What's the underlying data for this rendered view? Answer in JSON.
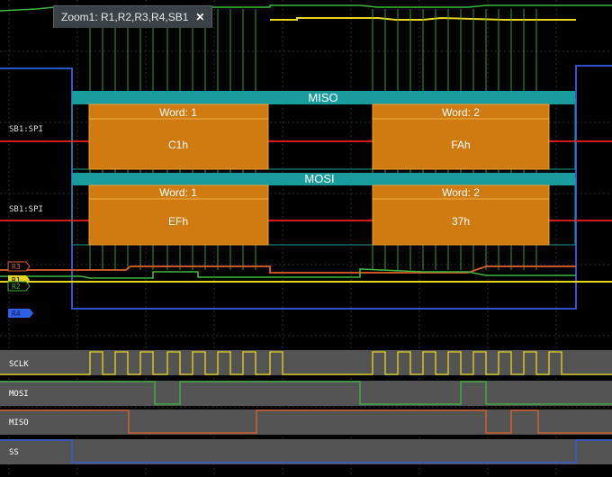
{
  "zoom_tab": {
    "title": "Zoom1: R1,R2,R3,R4,SB1",
    "close_glyph": "✕"
  },
  "decode": {
    "miso": {
      "label": "MISO",
      "words": [
        {
          "header": "Word: 1",
          "value": "C1h"
        },
        {
          "header": "Word: 2",
          "value": "FAh"
        }
      ]
    },
    "mosi": {
      "label": "MOSI",
      "words": [
        {
          "header": "Word: 1",
          "value": "EFh"
        },
        {
          "header": "Word: 2",
          "value": "37h"
        }
      ]
    },
    "bus_labels": [
      "SB1:SPI",
      "SB1:SPI"
    ]
  },
  "channel_markers": [
    "R3",
    "R1",
    "R2",
    "R4"
  ],
  "digital_lanes": [
    "SCLK",
    "MOSI",
    "MISO",
    "SS"
  ],
  "colors": {
    "accent_teal": "#1a9c9c",
    "decode_orange": "#d07a12",
    "ch_yellow": "#e8d51e",
    "ch_green": "#3cb83c",
    "ch_orange": "#e0602a",
    "ch_blue": "#2f5fe6",
    "bus_red": "#d41818"
  }
}
